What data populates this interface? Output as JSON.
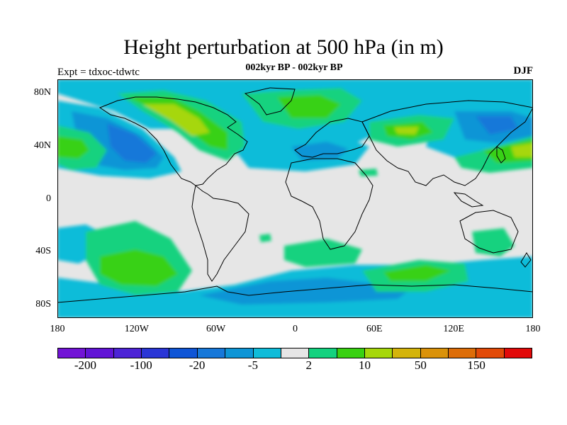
{
  "title": "Height perturbation at 500 hPa (in m)",
  "subtitle": "002kyr BP - 002kyr BP",
  "left_label": "Expt = tdxoc-tdwtc",
  "right_label": "DJF",
  "map": {
    "projection": "cylindrical equidistant",
    "lon_range": [
      -180,
      180
    ],
    "lat_range": [
      -90,
      90
    ],
    "background_color": "#e6e6e6"
  },
  "y_ticks": [
    {
      "label": "80N",
      "lat": 80
    },
    {
      "label": "40N",
      "lat": 40
    },
    {
      "label": "0",
      "lat": 0
    },
    {
      "label": "40S",
      "lat": -40
    },
    {
      "label": "80S",
      "lat": -80
    }
  ],
  "x_ticks": [
    {
      "label": "180",
      "lon": -180
    },
    {
      "label": "120W",
      "lon": -120
    },
    {
      "label": "60W",
      "lon": -60
    },
    {
      "label": "0",
      "lon": 0
    },
    {
      "label": "60E",
      "lon": 60
    },
    {
      "label": "120E",
      "lon": 120
    },
    {
      "label": "180",
      "lon": 180
    }
  ],
  "colorbar": {
    "colors": [
      "#7214d6",
      "#6114d6",
      "#4d24d6",
      "#2a36d6",
      "#0f55d6",
      "#1778d9",
      "#0e95d6",
      "#10bcd9",
      "#e6e6e6",
      "#14d27f",
      "#39d112",
      "#a6d70b",
      "#d4b40b",
      "#da920a",
      "#dd6d08",
      "#e24a08",
      "#e20a0a"
    ],
    "labels": [
      {
        "text": "-200",
        "boundary": 1
      },
      {
        "text": "-100",
        "boundary": 3
      },
      {
        "text": "-20",
        "boundary": 5
      },
      {
        "text": "-5",
        "boundary": 7
      },
      {
        "text": "2",
        "boundary": 9
      },
      {
        "text": "10",
        "boundary": 11
      },
      {
        "text": "50",
        "boundary": 13
      },
      {
        "text": "150",
        "boundary": 15
      }
    ]
  }
}
